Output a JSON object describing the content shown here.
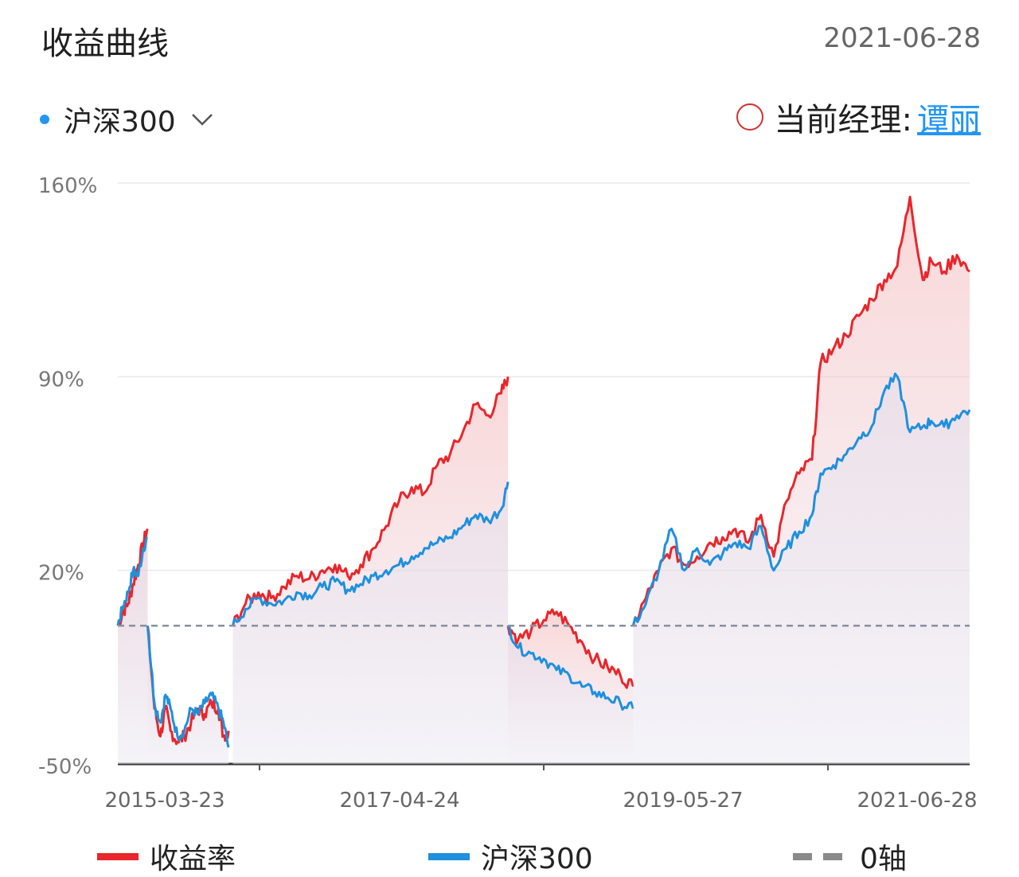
{
  "header": {
    "title": "收益曲线",
    "date": "2021-06-28"
  },
  "benchmark_selector": {
    "label": "沪深300"
  },
  "manager": {
    "label": "当前经理:",
    "name": "谭丽"
  },
  "colors": {
    "fund": "#e8262b",
    "benchmark": "#1e90dd",
    "zero_axis": "#8a8f9e",
    "grid": "#e8e8ee"
  },
  "chart_data": {
    "type": "line",
    "y_ticks": [
      "160%",
      "90%",
      "20%",
      "-50%"
    ],
    "ylim": [
      -50,
      160
    ],
    "x_ticks": [
      "2015-03-23",
      "2017-04-24",
      "2019-05-27",
      "2021-06-28"
    ],
    "x_range": [
      0,
      100
    ],
    "grid": true,
    "legend_position": "bottom",
    "legend": [
      {
        "label": "收益率",
        "style": "solid",
        "color": "#e8262b"
      },
      {
        "label": "沪深300",
        "style": "solid",
        "color": "#1e90dd"
      },
      {
        "label": "0轴",
        "style": "dashed",
        "color": "#8a8a8a"
      }
    ],
    "segments": [
      {
        "x": [
          0,
          0.6,
          1.2,
          1.8,
          2.4,
          3.0,
          3.5
        ],
        "fund": [
          0,
          5,
          8,
          15,
          22,
          30,
          35
        ],
        "benchmark": [
          0,
          7,
          12,
          20,
          18,
          28,
          32
        ]
      },
      {
        "x": [
          3.5,
          4.3,
          5.0,
          5.6,
          6.2,
          7.0,
          7.8,
          8.6,
          9.4,
          10.2,
          11.0,
          11.8,
          12.4,
          13.0
        ],
        "fund": [
          0,
          -30,
          -40,
          -30,
          -38,
          -42,
          -40,
          -35,
          -30,
          -32,
          -28,
          -30,
          -40,
          -38
        ],
        "benchmark": [
          0,
          -28,
          -35,
          -25,
          -30,
          -40,
          -38,
          -30,
          -32,
          -28,
          -25,
          -30,
          -35,
          -44
        ]
      },
      {
        "x": [
          13.5,
          15,
          16.5,
          18,
          19.5,
          21,
          22.5,
          24,
          25.5,
          27,
          28.5,
          30,
          31.5,
          33,
          34.5,
          36,
          37.5,
          39,
          40.5,
          42,
          43.5,
          45,
          45.8
        ],
        "fund": [
          0,
          8,
          12,
          10,
          14,
          18,
          17,
          20,
          22,
          18,
          22,
          28,
          36,
          45,
          50,
          48,
          58,
          62,
          70,
          80,
          76,
          84,
          90
        ],
        "benchmark": [
          0,
          6,
          10,
          8,
          9,
          12,
          11,
          14,
          16,
          13,
          15,
          18,
          20,
          22,
          25,
          28,
          30,
          32,
          36,
          40,
          38,
          42,
          52
        ]
      },
      {
        "x": [
          45.8,
          47.0,
          48.5,
          50.0,
          51.5,
          53.0,
          54.5,
          56.0,
          57.5,
          59.0,
          60.5
        ],
        "fund": [
          0,
          -5,
          -2,
          2,
          5,
          0,
          -6,
          -12,
          -15,
          -18,
          -22
        ],
        "benchmark": [
          0,
          -8,
          -10,
          -12,
          -16,
          -18,
          -22,
          -24,
          -26,
          -28,
          -30
        ]
      },
      {
        "x": [
          60.5,
          62,
          63.5,
          65,
          66.5,
          68,
          69.5,
          71,
          72.5,
          74,
          75.5,
          77,
          78.5,
          80,
          81.5,
          82.5,
          84,
          85.5,
          87,
          88.5,
          90,
          91.5,
          93,
          94.5,
          95.5,
          97,
          98.5,
          100
        ],
        "fund": [
          0,
          10,
          20,
          28,
          22,
          25,
          30,
          32,
          35,
          30,
          40,
          25,
          45,
          55,
          60,
          95,
          100,
          105,
          112,
          118,
          125,
          130,
          155,
          125,
          132,
          128,
          134,
          128
        ],
        "benchmark": [
          0,
          8,
          20,
          35,
          20,
          28,
          22,
          26,
          30,
          28,
          36,
          20,
          28,
          34,
          40,
          55,
          58,
          62,
          68,
          72,
          85,
          90,
          70,
          72,
          74,
          72,
          76,
          78
        ]
      }
    ]
  },
  "legend_items": {
    "fund": "收益率",
    "benchmark": "沪深300",
    "zero": "0轴"
  }
}
